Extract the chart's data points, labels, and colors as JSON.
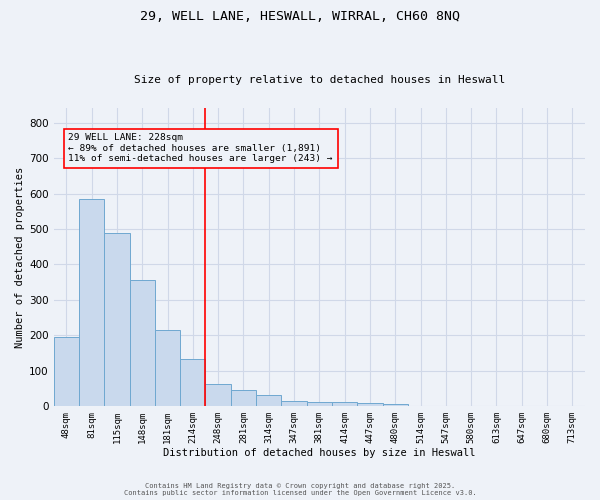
{
  "title1": "29, WELL LANE, HESWALL, WIRRAL, CH60 8NQ",
  "title2": "Size of property relative to detached houses in Heswall",
  "xlabel": "Distribution of detached houses by size in Heswall",
  "ylabel": "Number of detached properties",
  "categories": [
    "48sqm",
    "81sqm",
    "115sqm",
    "148sqm",
    "181sqm",
    "214sqm",
    "248sqm",
    "281sqm",
    "314sqm",
    "347sqm",
    "381sqm",
    "414sqm",
    "447sqm",
    "480sqm",
    "514sqm",
    "547sqm",
    "580sqm",
    "613sqm",
    "647sqm",
    "680sqm",
    "713sqm"
  ],
  "values": [
    195,
    585,
    490,
    355,
    215,
    133,
    63,
    46,
    33,
    15,
    11,
    12,
    10,
    5,
    0,
    0,
    0,
    0,
    0,
    0,
    0
  ],
  "bar_color": "#c9d9ed",
  "bar_edge_color": "#6fa8d0",
  "bar_width": 1.0,
  "grid_color": "#d0d8e8",
  "bg_color": "#eef2f8",
  "red_line_x": 5.5,
  "annotation_text": "29 WELL LANE: 228sqm\n← 89% of detached houses are smaller (1,891)\n11% of semi-detached houses are larger (243) →",
  "ylim": [
    0,
    840
  ],
  "yticks": [
    0,
    100,
    200,
    300,
    400,
    500,
    600,
    700,
    800
  ],
  "footer1": "Contains HM Land Registry data © Crown copyright and database right 2025.",
  "footer2": "Contains public sector information licensed under the Open Government Licence v3.0."
}
